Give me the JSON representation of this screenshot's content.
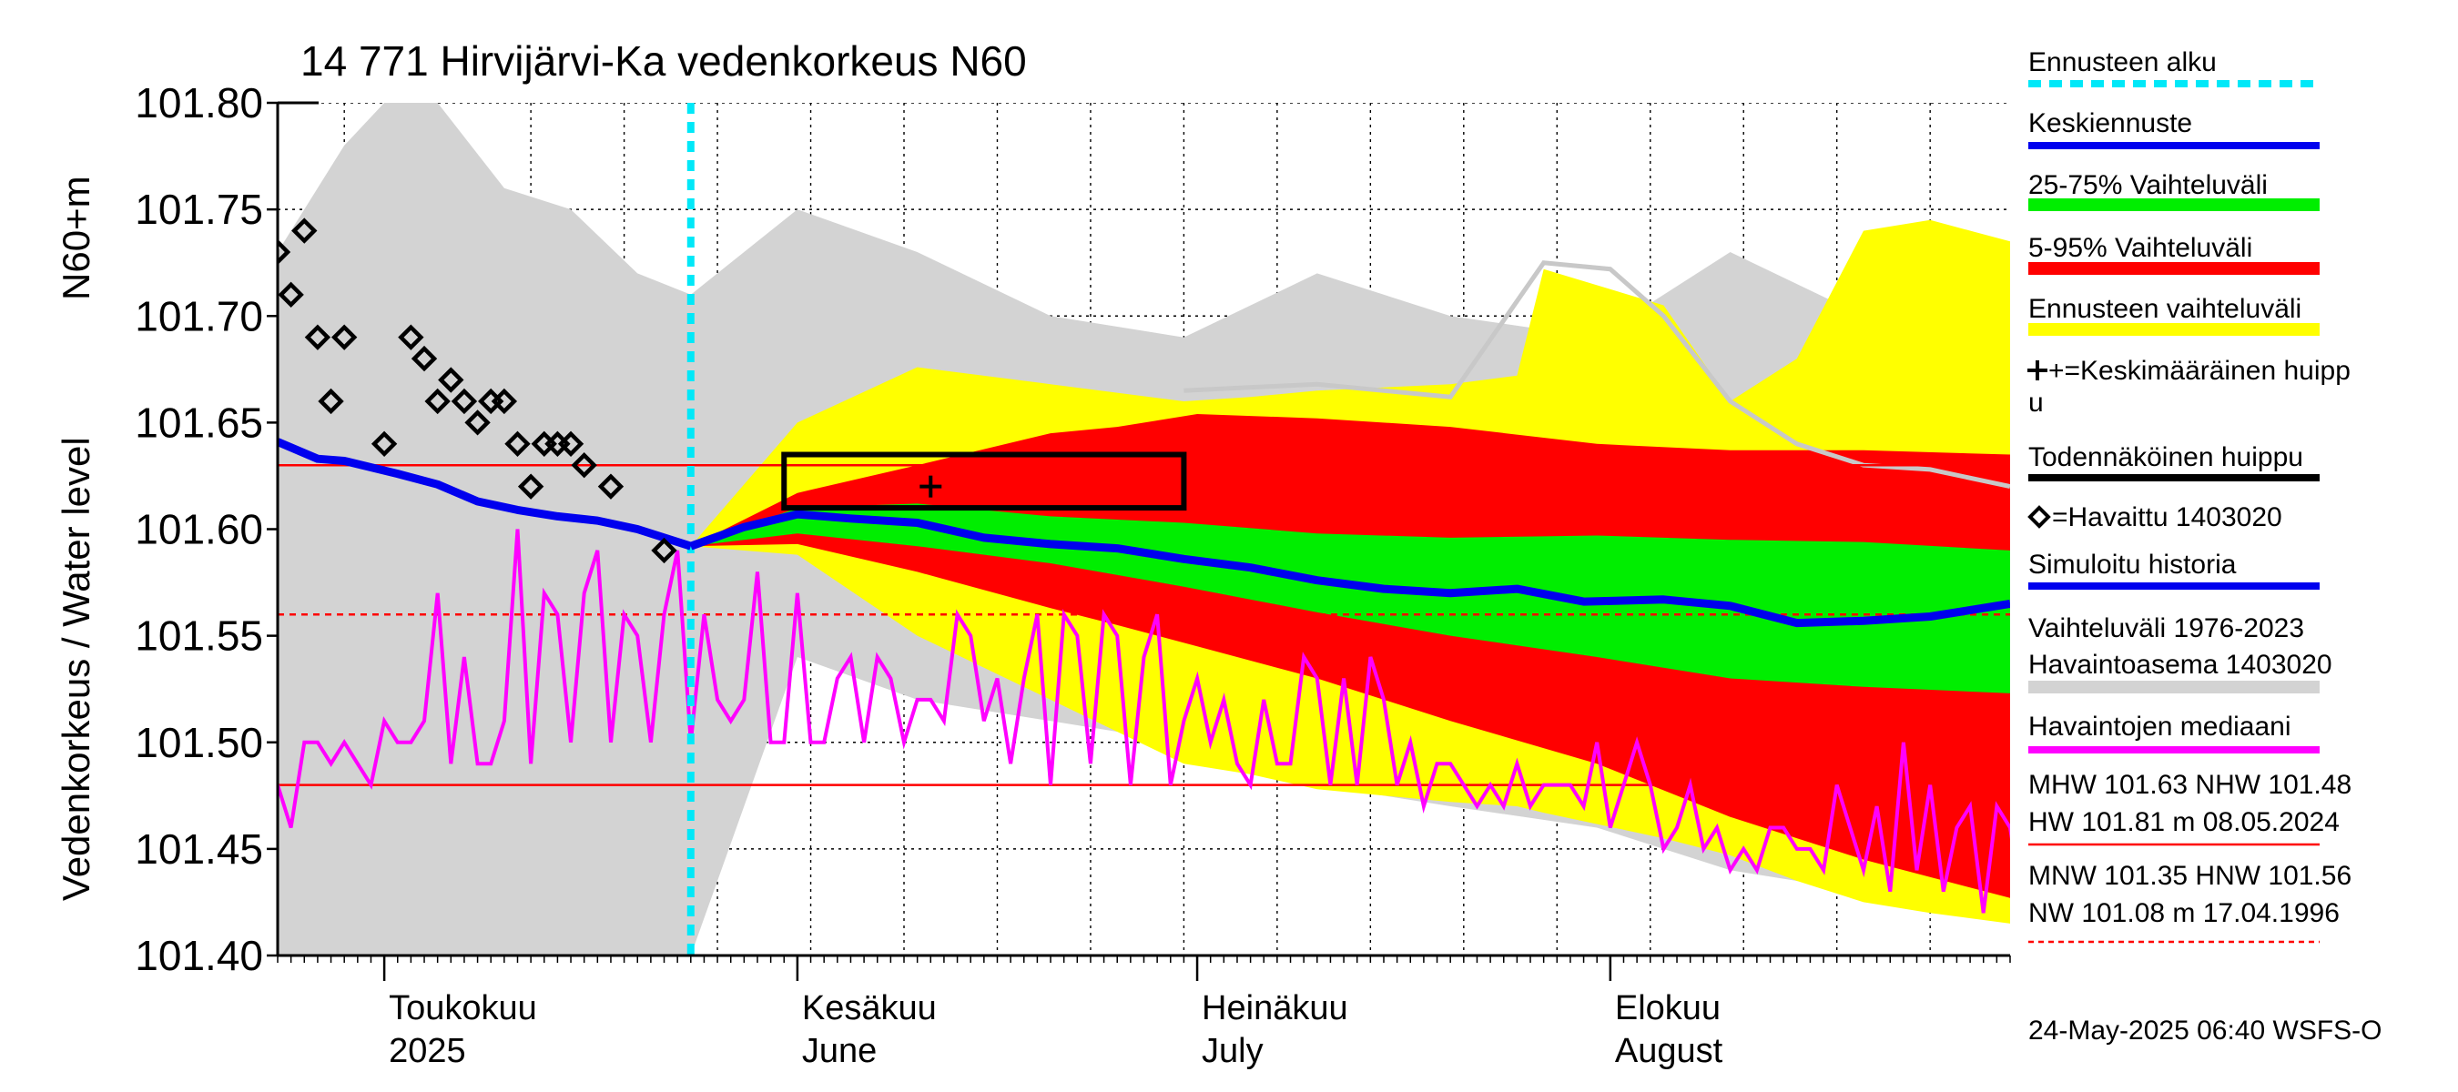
{
  "chart_data": {
    "type": "line",
    "title": "14 771 Hirvijärvi-Ka vedenkorkeus N60",
    "ylabel_line1": "N60+m",
    "ylabel_line2": "Vedenkorkeus / Water level",
    "ylim": [
      101.4,
      101.8
    ],
    "y_ticks": [
      "101.40",
      "101.45",
      "101.50",
      "101.55",
      "101.60",
      "101.65",
      "101.70",
      "101.75",
      "101.80"
    ],
    "x_start": "2025-04-23",
    "x_end": "2025-08-31",
    "forecast_start": "2025-05-24",
    "month_labels": [
      {
        "date": "2025-05-01",
        "fi": "Toukokuu",
        "en": "2025"
      },
      {
        "date": "2025-06-01",
        "fi": "Kesäkuu",
        "en": "June"
      },
      {
        "date": "2025-07-01",
        "fi": "Heinäkuu",
        "en": "July"
      },
      {
        "date": "2025-08-01",
        "fi": "Elokuu",
        "en": "August"
      }
    ],
    "reference_lines": [
      {
        "name": "MHW",
        "value": 101.63,
        "style": "solid"
      },
      {
        "name": "NHW",
        "value": 101.48,
        "style": "solid"
      },
      {
        "name": "HNW",
        "value": 101.56,
        "style": "dashed"
      }
    ],
    "probable_peak_box": {
      "date_start": "2025-05-31",
      "date_end": "2025-06-30",
      "y_low": 101.61,
      "y_high": 101.635
    },
    "mean_peak": {
      "date": "2025-06-11",
      "y": 101.62
    },
    "observed": [
      {
        "date": "2025-04-23",
        "y": 101.73
      },
      {
        "date": "2025-04-24",
        "y": 101.71
      },
      {
        "date": "2025-04-25",
        "y": 101.74
      },
      {
        "date": "2025-04-26",
        "y": 101.69
      },
      {
        "date": "2025-04-27",
        "y": 101.66
      },
      {
        "date": "2025-04-28",
        "y": 101.69
      },
      {
        "date": "2025-05-01",
        "y": 101.64
      },
      {
        "date": "2025-05-03",
        "y": 101.69
      },
      {
        "date": "2025-05-04",
        "y": 101.68
      },
      {
        "date": "2025-05-05",
        "y": 101.66
      },
      {
        "date": "2025-05-06",
        "y": 101.67
      },
      {
        "date": "2025-05-07",
        "y": 101.66
      },
      {
        "date": "2025-05-08",
        "y": 101.65
      },
      {
        "date": "2025-05-09",
        "y": 101.66
      },
      {
        "date": "2025-05-10",
        "y": 101.66
      },
      {
        "date": "2025-05-11",
        "y": 101.64
      },
      {
        "date": "2025-05-12",
        "y": 101.62
      },
      {
        "date": "2025-05-13",
        "y": 101.64
      },
      {
        "date": "2025-05-14",
        "y": 101.64
      },
      {
        "date": "2025-05-15",
        "y": 101.64
      },
      {
        "date": "2025-05-16",
        "y": 101.63
      },
      {
        "date": "2025-05-18",
        "y": 101.62
      },
      {
        "date": "2025-05-22",
        "y": 101.59
      }
    ],
    "simulated_history": [
      [
        "2025-04-23",
        101.641
      ],
      [
        "2025-04-26",
        101.633
      ],
      [
        "2025-04-28",
        101.632
      ],
      [
        "2025-05-02",
        101.626
      ],
      [
        "2025-05-05",
        101.621
      ],
      [
        "2025-05-08",
        101.613
      ],
      [
        "2025-05-11",
        101.609
      ],
      [
        "2025-05-14",
        101.606
      ],
      [
        "2025-05-17",
        101.604
      ],
      [
        "2025-05-20",
        101.6
      ],
      [
        "2025-05-24",
        101.592
      ]
    ],
    "median_forecast": [
      [
        "2025-05-24",
        101.592
      ],
      [
        "2025-05-28",
        101.601
      ],
      [
        "2025-06-01",
        101.607
      ],
      [
        "2025-06-05",
        101.605
      ],
      [
        "2025-06-10",
        101.603
      ],
      [
        "2025-06-15",
        101.596
      ],
      [
        "2025-06-20",
        101.593
      ],
      [
        "2025-06-25",
        101.591
      ],
      [
        "2025-06-30",
        101.586
      ],
      [
        "2025-07-05",
        101.582
      ],
      [
        "2025-07-10",
        101.576
      ],
      [
        "2025-07-15",
        101.572
      ],
      [
        "2025-07-20",
        101.57
      ],
      [
        "2025-07-25",
        101.572
      ],
      [
        "2025-07-30",
        101.566
      ],
      [
        "2025-08-05",
        101.567
      ],
      [
        "2025-08-10",
        101.564
      ],
      [
        "2025-08-15",
        101.556
      ],
      [
        "2025-08-20",
        101.557
      ],
      [
        "2025-08-25",
        101.559
      ],
      [
        "2025-08-31",
        101.565
      ]
    ],
    "band_25_75": {
      "dates": [
        "2025-05-24",
        "2025-06-01",
        "2025-06-10",
        "2025-06-20",
        "2025-06-30",
        "2025-07-10",
        "2025-07-20",
        "2025-07-31",
        "2025-08-10",
        "2025-08-20",
        "2025-08-31"
      ],
      "upper": [
        101.592,
        101.61,
        101.612,
        101.606,
        101.603,
        101.598,
        101.596,
        101.597,
        101.595,
        101.594,
        101.59
      ],
      "lower": [
        101.592,
        101.598,
        101.592,
        101.584,
        101.573,
        101.561,
        101.55,
        101.54,
        101.53,
        101.526,
        101.523
      ]
    },
    "band_5_95": {
      "dates": [
        "2025-05-24",
        "2025-06-01",
        "2025-06-10",
        "2025-06-20",
        "2025-06-25",
        "2025-07-01",
        "2025-07-10",
        "2025-07-20",
        "2025-07-31",
        "2025-08-10",
        "2025-08-20",
        "2025-08-31"
      ],
      "upper": [
        101.592,
        101.617,
        101.63,
        101.645,
        101.648,
        101.654,
        101.652,
        101.648,
        101.64,
        101.637,
        101.637,
        101.635
      ],
      "lower": [
        101.592,
        101.593,
        101.58,
        101.563,
        101.555,
        101.545,
        101.53,
        101.51,
        101.49,
        101.465,
        101.445,
        101.427
      ]
    },
    "band_forecast": {
      "dates": [
        "2025-05-24",
        "2025-06-01",
        "2025-06-10",
        "2025-06-20",
        "2025-06-30",
        "2025-07-05",
        "2025-07-10",
        "2025-07-20",
        "2025-07-25",
        "2025-07-27",
        "2025-08-05",
        "2025-08-10",
        "2025-08-15",
        "2025-08-20",
        "2025-08-25",
        "2025-08-31"
      ],
      "upper": [
        101.592,
        101.65,
        101.676,
        101.668,
        101.66,
        101.662,
        101.665,
        101.668,
        101.672,
        101.722,
        101.705,
        101.66,
        101.68,
        101.74,
        101.745,
        101.735
      ],
      "lower": [
        101.592,
        101.588,
        101.55,
        101.52,
        101.49,
        101.485,
        101.478,
        101.472,
        101.47,
        101.467,
        101.455,
        101.447,
        101.435,
        101.425,
        101.42,
        101.415
      ]
    },
    "history_range": {
      "dates": [
        "2025-04-23",
        "2025-04-28",
        "2025-05-01",
        "2025-05-05",
        "2025-05-10",
        "2025-05-15",
        "2025-05-20",
        "2025-05-24",
        "2025-06-01",
        "2025-06-10",
        "2025-06-20",
        "2025-06-30",
        "2025-07-10",
        "2025-07-20",
        "2025-07-31",
        "2025-08-10",
        "2025-08-20",
        "2025-08-31"
      ],
      "upper": [
        101.73,
        101.78,
        101.8,
        101.8,
        101.76,
        101.75,
        101.72,
        101.71,
        101.75,
        101.73,
        101.7,
        101.69,
        101.72,
        101.7,
        101.69,
        101.73,
        101.7,
        101.7
      ],
      "lower": [
        101.4,
        101.4,
        101.4,
        101.4,
        101.4,
        101.4,
        101.4,
        101.4,
        101.54,
        101.52,
        101.51,
        101.5,
        101.48,
        101.47,
        101.46,
        101.44,
        101.43,
        101.42
      ]
    },
    "history_station_line": [
      [
        "2025-06-30",
        101.665
      ],
      [
        "2025-07-10",
        101.668
      ],
      [
        "2025-07-20",
        101.662
      ],
      [
        "2025-07-27",
        101.725
      ],
      [
        "2025-08-01",
        101.722
      ],
      [
        "2025-08-05",
        101.7
      ],
      [
        "2025-08-10",
        101.66
      ],
      [
        "2025-08-15",
        101.64
      ],
      [
        "2025-08-20",
        101.63
      ],
      [
        "2025-08-25",
        101.628
      ],
      [
        "2025-08-31",
        101.62
      ]
    ],
    "observed_median": {
      "start_date": "2025-04-23",
      "values": [
        101.48,
        101.46,
        101.5,
        101.5,
        101.49,
        101.5,
        101.49,
        101.48,
        101.51,
        101.5,
        101.5,
        101.51,
        101.57,
        101.49,
        101.54,
        101.49,
        101.49,
        101.51,
        101.6,
        101.49,
        101.57,
        101.56,
        101.5,
        101.57,
        101.59,
        101.5,
        101.56,
        101.55,
        101.5,
        101.56,
        101.59,
        101.5,
        101.56,
        101.52,
        101.51,
        101.52,
        101.58,
        101.5,
        101.5,
        101.57,
        101.5,
        101.5,
        101.53,
        101.54,
        101.5,
        101.54,
        101.53,
        101.5,
        101.52,
        101.52,
        101.51,
        101.56,
        101.55,
        101.51,
        101.53,
        101.49,
        101.53,
        101.56,
        101.48,
        101.56,
        101.55,
        101.49,
        101.56,
        101.55,
        101.48,
        101.54,
        101.56,
        101.48,
        101.51,
        101.53,
        101.5,
        101.52,
        101.49,
        101.48,
        101.52,
        101.49,
        101.49,
        101.54,
        101.53,
        101.48,
        101.53,
        101.48,
        101.54,
        101.52,
        101.48,
        101.5,
        101.47,
        101.49,
        101.49,
        101.48,
        101.47,
        101.48,
        101.47,
        101.49,
        101.47,
        101.48,
        101.48,
        101.48,
        101.47,
        101.5,
        101.46,
        101.48,
        101.5,
        101.48,
        101.45,
        101.46,
        101.48,
        101.45,
        101.46,
        101.44,
        101.45,
        101.44,
        101.46,
        101.46,
        101.45,
        101.45,
        101.44,
        101.48,
        101.46,
        101.44,
        101.47,
        101.43,
        101.5,
        101.44,
        101.48,
        101.43,
        101.46,
        101.47,
        101.42,
        101.47,
        101.46,
        101.42
      ]
    }
  },
  "legend": {
    "items": [
      {
        "label": "Ennusteen alku",
        "color": "#00e8f8",
        "style": "dashed"
      },
      {
        "label": "Keskiennuste",
        "color": "#0000ee",
        "style": "line"
      },
      {
        "label": "25-75% Vaihteluväli",
        "color": "#00ee00",
        "style": "band"
      },
      {
        "label": "5-95% Vaihteluväli",
        "color": "#ff0000",
        "style": "band"
      },
      {
        "label": "Ennusteen vaihteluväli",
        "color": "#ffff00",
        "style": "band"
      },
      {
        "label_line1": "+=Keskimääräinen huipp",
        "label_line2": "u",
        "color": "#000000",
        "style": "plus"
      },
      {
        "label": "Todennäköinen huippu",
        "color": "#000000",
        "style": "line"
      },
      {
        "label": "=Havaittu 1403020",
        "color": "#000000",
        "style": "diamond"
      },
      {
        "label": "Simuloitu historia",
        "color": "#0000ee",
        "style": "line"
      },
      {
        "label_line1": "Vaihteluväli 1976-2023",
        "label_line2": " Havaintoasema 1403020",
        "color": "#d3d3d3",
        "style": "band"
      },
      {
        "label": "Havaintojen mediaani",
        "color": "#ff00ff",
        "style": "line"
      }
    ],
    "stats1_line1": "MHW 101.63 NHW 101.48",
    "stats1_line2": "HW 101.81 m 08.05.2024",
    "stats2_line1": "MNW 101.35 HNW 101.56",
    "stats2_line2": "NW 101.08 m 17.04.1996",
    "timestamp": "24-May-2025 06:40 WSFS-O"
  },
  "colors": {
    "history_range": "#d3d3d3",
    "forecast_range": "#ffff00",
    "band_5_95": "#ff0000",
    "band_25_75": "#00ee00",
    "median": "#0000ee",
    "forecast_start": "#00e8f8",
    "observed_median": "#ff00ff",
    "reference": "#ff0000",
    "history_station_line": "#c8c8c8"
  }
}
